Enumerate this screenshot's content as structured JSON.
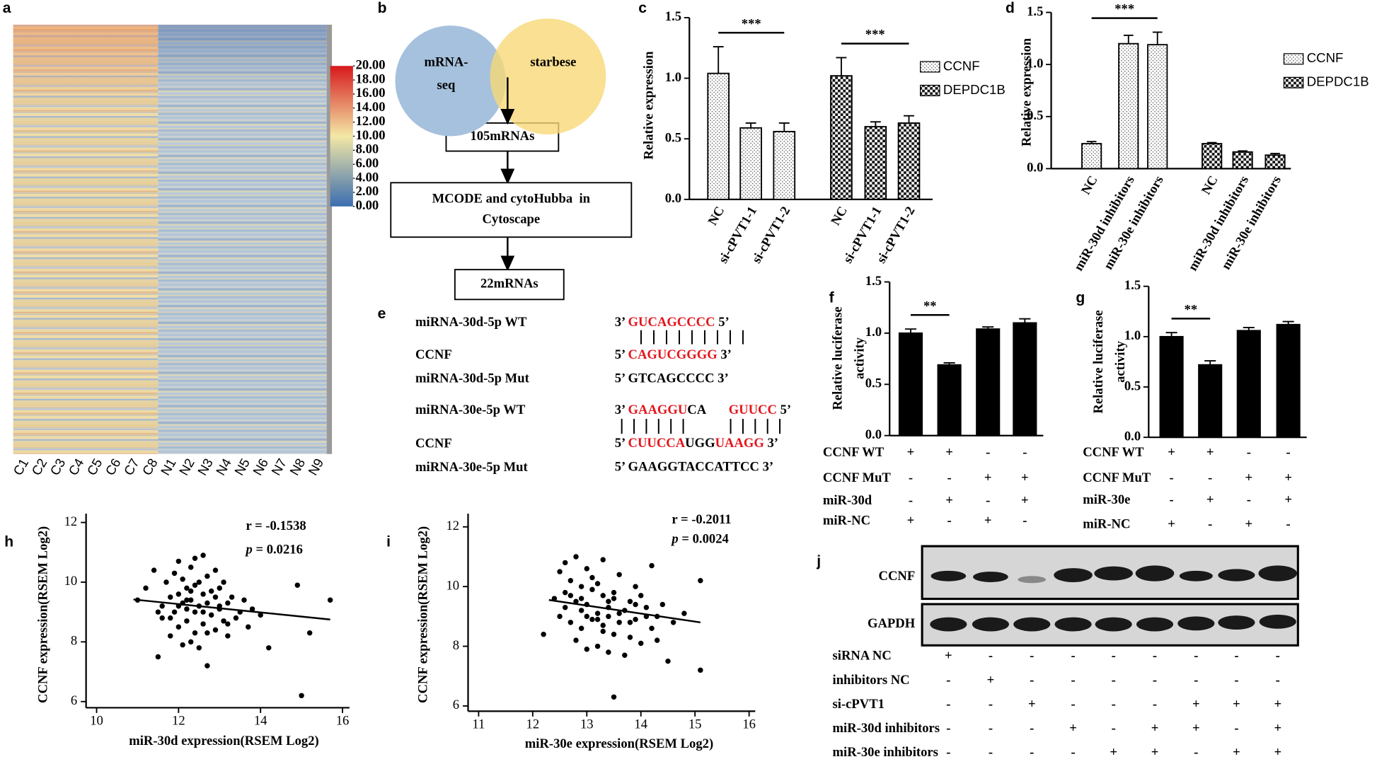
{
  "heatmap": {
    "label": "a",
    "columns": [
      "C1",
      "C2",
      "C3",
      "C4",
      "C5",
      "C6",
      "C7",
      "C8",
      "N1",
      "N2",
      "N3",
      "N4",
      "N5",
      "N6",
      "N7",
      "N8",
      "N9"
    ],
    "colorbar": {
      "lim": [
        0,
        20
      ],
      "colors": [
        "#3a6db0",
        "#f3e8a6",
        "#d7191c"
      ],
      "ticks": [
        {
          "value": 20,
          "label": "20.00"
        },
        {
          "value": 18,
          "label": "18.00"
        },
        {
          "value": 16,
          "label": "16.00"
        },
        {
          "value": 14,
          "label": "14.00"
        },
        {
          "value": 12,
          "label": "12.00"
        },
        {
          "value": 10,
          "label": "10.00"
        },
        {
          "value": 8,
          "label": "8.00"
        },
        {
          "value": 6,
          "label": "6.00"
        },
        {
          "value": 4,
          "label": "4.00"
        },
        {
          "value": 2,
          "label": "2.00"
        },
        {
          "value": 0,
          "label": "0.00"
        }
      ]
    }
  },
  "flowchart": {
    "label": "b",
    "sets": [
      {
        "lines": [
          "mRNA-",
          "seq"
        ],
        "color": "#a6c1dd"
      },
      {
        "lines": [
          "starbese"
        ],
        "color": "#f8d877"
      }
    ],
    "boxes": [
      {
        "lines": [
          "105mRNAs"
        ]
      },
      {
        "lines": [
          "MCODE and cytoHubba  in",
          "Cytoscape"
        ]
      },
      {
        "lines": [
          "22mRNAs"
        ]
      }
    ]
  },
  "alignment": {
    "label": "e",
    "rows": [
      {
        "name": "miRNA-30d-5p WT",
        "seq": [
          {
            "text": "3’ "
          },
          {
            "text": "GUCAGCCCC",
            "color": "#e3161c"
          },
          {
            "text": " 5’"
          }
        ]
      },
      {
        "name": "CCNF",
        "seq": [
          {
            "text": "5’ "
          },
          {
            "text": "CAGUCGGGG",
            "color": "#e3161c"
          },
          {
            "text": " 3’"
          }
        ]
      },
      {
        "name": "miRNA-30d-5p Mut",
        "seq": [
          {
            "text": "5’ GTCAGCCCC 3’"
          }
        ]
      },
      {
        "name": "miRNA-30e-5p WT",
        "seq": [
          {
            "text": "3’ "
          },
          {
            "text": "GAAGGU",
            "color": "#e3161c"
          },
          {
            "text": "CA       "
          },
          {
            "text": "GUUCC",
            "color": "#e3161c"
          },
          {
            "text": " 5’"
          }
        ]
      },
      {
        "name": "CCNF",
        "seq": [
          {
            "text": "5’ "
          },
          {
            "text": "CUUCCA",
            "color": "#e3161c"
          },
          {
            "text": "UGG"
          },
          {
            "text": "UAAGG",
            "color": "#e3161c"
          },
          {
            "text": " 3’"
          }
        ]
      },
      {
        "name": "miRNA-30e-5p Mut",
        "seq": [
          {
            "text": "5’ GAAGGTACCATTCC 3’"
          }
        ]
      }
    ]
  },
  "blot": {
    "label": "j",
    "bands": [
      "CCNF",
      "GAPDH"
    ],
    "conditions": [
      {
        "name": "siRNA NC",
        "signs": [
          "+",
          "-",
          "-",
          "-",
          "-",
          "-",
          "-",
          "-",
          "-"
        ]
      },
      {
        "name": "inhibitors NC",
        "signs": [
          "-",
          "+",
          "-",
          "-",
          "-",
          "-",
          "-",
          "-",
          "-"
        ]
      },
      {
        "name": "si-cPVT1",
        "signs": [
          "-",
          "-",
          "+",
          "-",
          "-",
          "-",
          "+",
          "+",
          "+"
        ]
      },
      {
        "name": "miR-30d inhibitors",
        "signs": [
          "-",
          "-",
          "-",
          "+",
          "-",
          "+",
          "+",
          "-",
          "+"
        ]
      },
      {
        "name": "miR-30e inhibitors",
        "signs": [
          "-",
          "-",
          "-",
          "-",
          "+",
          "+",
          "-",
          "+",
          "+"
        ]
      }
    ]
  },
  "chart_data": [
    {
      "type": "bar",
      "label": "c",
      "ylabel": [
        "Relative expression"
      ],
      "categories": [
        "NC",
        "si-cPVT1-1",
        "si-cPVT1-2"
      ],
      "series": [
        {
          "name": "CCNF",
          "pattern": "dots",
          "values": [
            1.04,
            0.59,
            0.56
          ],
          "errors": [
            0.22,
            0.04,
            0.07
          ]
        },
        {
          "name": "DEPDC1B",
          "pattern": "checker",
          "values": [
            1.02,
            0.6,
            0.63
          ],
          "errors": [
            0.15,
            0.04,
            0.06
          ]
        }
      ],
      "annotations": [
        {
          "text": "***",
          "series": 0,
          "span": [
            0,
            2
          ]
        },
        {
          "text": "***",
          "series": 1,
          "span": [
            0,
            2
          ]
        }
      ],
      "ylim": [
        0,
        1.5
      ],
      "yticks": [
        {
          "value": 0,
          "label": "0.0"
        },
        {
          "value": 0.5,
          "label": "0.5"
        },
        {
          "value": 1,
          "label": "1.0"
        },
        {
          "value": 1.5,
          "label": "1.5"
        }
      ]
    },
    {
      "type": "bar",
      "label": "d",
      "ylabel": [
        "Relative expression"
      ],
      "categories": [
        "NC",
        "miR-30d inhibitors",
        "miR-30e inhibitors"
      ],
      "series": [
        {
          "name": "CCNF",
          "pattern": "dots",
          "values": [
            0.24,
            1.2,
            1.19
          ],
          "errors": [
            0.02,
            0.08,
            0.12
          ]
        },
        {
          "name": "DEPDC1B",
          "pattern": "checker",
          "values": [
            0.24,
            0.16,
            0.13
          ],
          "errors": [
            0.01,
            0.01,
            0.015
          ]
        }
      ],
      "annotations": [
        {
          "text": "***",
          "series": 0,
          "span": [
            0,
            2
          ]
        }
      ],
      "ylim": [
        0,
        1.5
      ],
      "yticks": [
        {
          "value": 0,
          "label": "0.0"
        },
        {
          "value": 0.5,
          "label": "0.5"
        },
        {
          "value": 1,
          "label": "1.0"
        },
        {
          "value": 1.5,
          "label": "1.5"
        }
      ]
    },
    {
      "type": "bar",
      "label": "f",
      "ylabel": [
        "Relative luciferase",
        "activity"
      ],
      "color": "#000000",
      "values": [
        1.0,
        0.69,
        1.04,
        1.1
      ],
      "errors": [
        0.04,
        0.02,
        0.02,
        0.04
      ],
      "annotations": [
        {
          "text": "**",
          "span": [
            0,
            1
          ]
        }
      ],
      "conditions": [
        {
          "name": "CCNF WT",
          "signs": [
            "+",
            "+",
            "-",
            "-"
          ]
        },
        {
          "name": "CCNF MuT",
          "signs": [
            "-",
            "-",
            "+",
            "+"
          ]
        },
        {
          "name": "miR-30d",
          "signs": [
            "-",
            "+",
            "-",
            "+"
          ]
        },
        {
          "name": "miR-NC",
          "signs": [
            "+",
            "-",
            "+",
            "-"
          ]
        }
      ],
      "ylim": [
        0,
        1.5
      ],
      "yticks": [
        {
          "value": 0,
          "label": "0.0"
        },
        {
          "value": 0.5,
          "label": "0.5"
        },
        {
          "value": 1,
          "label": "1.0"
        },
        {
          "value": 1.5,
          "label": "1.5"
        }
      ]
    },
    {
      "type": "bar",
      "label": "g",
      "ylabel": [
        "Relative luciferase",
        "activity"
      ],
      "color": "#000000",
      "values": [
        1.0,
        0.72,
        1.06,
        1.12
      ],
      "errors": [
        0.04,
        0.04,
        0.03,
        0.03
      ],
      "annotations": [
        {
          "text": "**",
          "span": [
            0,
            1
          ]
        }
      ],
      "conditions": [
        {
          "name": "CCNF WT",
          "signs": [
            "+",
            "+",
            "-",
            "-"
          ]
        },
        {
          "name": "CCNF MuT",
          "signs": [
            "-",
            "-",
            "+",
            "+"
          ]
        },
        {
          "name": "miR-30e",
          "signs": [
            "-",
            "+",
            "-",
            "+"
          ]
        },
        {
          "name": "miR-NC",
          "signs": [
            "+",
            "-",
            "+",
            "-"
          ]
        }
      ],
      "ylim": [
        0,
        1.5
      ],
      "yticks": [
        {
          "value": 0,
          "label": "0.0"
        },
        {
          "value": 0.5,
          "label": "0.5"
        },
        {
          "value": 1,
          "label": "1.0"
        },
        {
          "value": 1.5,
          "label": "1.5"
        }
      ]
    },
    {
      "type": "scatter",
      "label": "h",
      "xlabel": "miR-30d expression(RSEM Log2)",
      "ylabel": "CCNF expression(RSEM Log2)",
      "color": "#000000",
      "stats": [
        [
          {
            "text": "r = -0.1538"
          }
        ],
        [
          {
            "text": "p",
            "italic": true
          },
          {
            "text": " = 0.0216"
          }
        ]
      ],
      "x": [
        11.0,
        11.2,
        11.4,
        11.5,
        11.6,
        11.6,
        11.7,
        11.8,
        11.8,
        11.9,
        11.9,
        12.0,
        12.0,
        12.0,
        12.1,
        12.1,
        12.1,
        12.2,
        12.2,
        12.2,
        12.3,
        12.3,
        12.3,
        12.4,
        12.4,
        12.4,
        12.5,
        12.5,
        12.5,
        12.6,
        12.6,
        12.6,
        12.7,
        12.7,
        12.7,
        12.8,
        12.8,
        12.9,
        12.9,
        13.0,
        13.0,
        13.1,
        13.1,
        13.2,
        13.2,
        13.3,
        13.4,
        13.5,
        13.6,
        13.7,
        13.8,
        14.0,
        14.2,
        14.9,
        15.0,
        15.2,
        15.7,
        11.5,
        12.0,
        12.3,
        12.6,
        12.9,
        13.2,
        12.4,
        11.8,
        12.7,
        12.2,
        13.0
      ],
      "y": [
        9.4,
        9.8,
        10.4,
        7.5,
        9.2,
        8.8,
        10.0,
        9.5,
        8.2,
        10.3,
        9.0,
        9.6,
        8.5,
        10.7,
        9.3,
        7.9,
        10.1,
        9.8,
        8.7,
        9.1,
        10.5,
        8.0,
        9.4,
        9.9,
        8.3,
        10.8,
        9.2,
        7.8,
        10.0,
        9.6,
        8.6,
        10.9,
        9.3,
        7.2,
        10.2,
        8.9,
        9.7,
        8.4,
        10.4,
        9.1,
        9.8,
        8.7,
        10.0,
        9.3,
        8.2,
        9.5,
        8.8,
        9.0,
        9.4,
        8.5,
        9.1,
        8.9,
        7.8,
        9.9,
        6.2,
        8.3,
        9.4,
        9.0,
        9.2,
        9.7,
        9.0,
        9.5,
        8.6,
        9.0,
        8.8,
        8.3,
        9.4,
        9.2
      ],
      "fit": {
        "x": [
          10.9,
          15.7
        ],
        "y": [
          9.42,
          8.75
        ]
      },
      "xlim": [
        10,
        16
      ],
      "xticks": [
        10,
        12,
        14,
        16
      ],
      "ylim": [
        6,
        12
      ],
      "yticks": [
        6,
        8,
        10,
        12
      ]
    },
    {
      "type": "scatter",
      "label": "i",
      "xlabel": "miR-30e expression(RSEM Log2)",
      "ylabel": "CCNF expression(RSEM Log2)",
      "color": "#000000",
      "stats": [
        [
          {
            "text": "r = -0.2011"
          }
        ],
        [
          {
            "text": "p",
            "italic": true
          },
          {
            "text": " = 0.0024"
          }
        ]
      ],
      "x": [
        12.2,
        12.4,
        12.5,
        12.5,
        12.6,
        12.6,
        12.7,
        12.7,
        12.8,
        12.8,
        12.8,
        12.9,
        12.9,
        12.9,
        13.0,
        13.0,
        13.0,
        13.1,
        13.1,
        13.1,
        13.2,
        13.2,
        13.2,
        13.3,
        13.3,
        13.3,
        13.4,
        13.4,
        13.4,
        13.5,
        13.5,
        13.5,
        13.6,
        13.6,
        13.7,
        13.7,
        13.8,
        13.8,
        13.9,
        13.9,
        14.0,
        14.0,
        14.1,
        14.2,
        14.2,
        14.3,
        14.4,
        14.5,
        14.6,
        14.8,
        15.1,
        15.1,
        13.5,
        12.6,
        13.0,
        13.3,
        13.6,
        13.9,
        12.9,
        13.2,
        14.1,
        12.7,
        13.4,
        13.8,
        14.3
      ],
      "y": [
        8.4,
        9.6,
        10.5,
        9.0,
        10.8,
        9.8,
        10.2,
        8.8,
        9.5,
        11.0,
        8.2,
        10.0,
        9.2,
        8.6,
        10.6,
        9.4,
        7.9,
        9.9,
        8.9,
        10.3,
        9.1,
        8.0,
        10.1,
        9.7,
        8.5,
        10.9,
        9.3,
        7.8,
        9.0,
        9.6,
        6.3,
        8.4,
        10.4,
        8.8,
        9.2,
        7.7,
        9.5,
        8.3,
        10.0,
        8.9,
        9.7,
        8.1,
        9.3,
        10.7,
        8.6,
        9.0,
        9.4,
        7.5,
        8.8,
        9.1,
        7.2,
        10.2,
        9.8,
        9.3,
        9.0,
        8.7,
        9.1,
        9.4,
        9.6,
        8.9,
        9.0,
        9.7,
        9.5,
        8.8,
        8.2
      ],
      "fit": {
        "x": [
          12.3,
          15.1
        ],
        "y": [
          9.55,
          8.8
        ]
      },
      "xlim": [
        11,
        16
      ],
      "xticks": [
        11,
        12,
        13,
        14,
        15,
        16
      ],
      "ylim": [
        6,
        12
      ],
      "yticks": [
        6,
        8,
        10,
        12
      ]
    }
  ]
}
